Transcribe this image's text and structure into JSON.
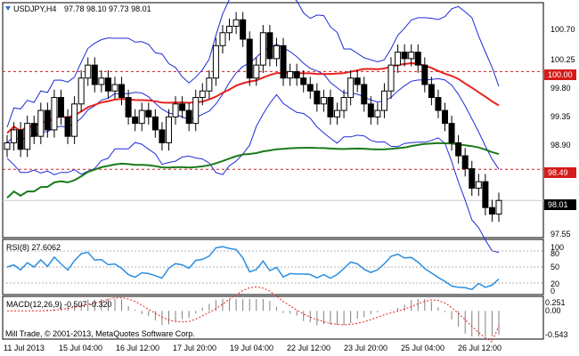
{
  "main_title": {
    "symbol": "USDJPY,H4",
    "ohlc": "97.78 98.10 97.73 98.01",
    "icon": "chart-triangle-icon"
  },
  "rsi_title": "RSI(8) 27.6062",
  "macd_title": "MACD(12,26,9) -0.507 -0.320",
  "copyright": "Mill Trade, © 2001-2013, MetaQuotes Software Corp.",
  "price_axis": [
    "100.70",
    "100.25",
    "99.80",
    "99.35",
    "98.90",
    "97.55"
  ],
  "price_tags": {
    "last": "98.01",
    "upper_level": "100.00",
    "lower_level": "98.49"
  },
  "rsi_axis": [
    "100",
    "80",
    "50",
    "20",
    "0"
  ],
  "macd_axis": [
    "0.251",
    "0.00",
    "-0.543"
  ],
  "time_axis": [
    "11 Jul 2013",
    "15 Jul 04:00",
    "16 Jul 12:00",
    "17 Jul 20:00",
    "19 Jul 04:00",
    "22 Jul 12:00",
    "23 Jul 20:00",
    "25 Jul 04:00",
    "26 Jul 12:00"
  ],
  "colors": {
    "bull": "#ffffff",
    "bear": "#000000",
    "ma_red": "#e8231e",
    "ma_green": "#1b7a1b",
    "bands": "#1f2bd6",
    "rsi": "#2b8ee0",
    "macd_hist": "#808080",
    "macd_signal": "#e8231e",
    "level_line": "#d41c1c",
    "tag_red": "#d41c1c"
  },
  "chart_data": {
    "type": "candlestick",
    "symbol": "USDJPY",
    "timeframe": "H4",
    "last_bar": {
      "open": 97.78,
      "high": 98.1,
      "low": 97.73,
      "close": 98.01
    },
    "ylim": [
      97.45,
      101.05
    ],
    "x": [
      "11 Jul 2013",
      "15 Jul 04:00",
      "16 Jul 12:00",
      "17 Jul 20:00",
      "19 Jul 04:00",
      "22 Jul 12:00",
      "23 Jul 20:00",
      "25 Jul 04:00",
      "26 Jul 12:00"
    ],
    "horizontal_levels": [
      100.0,
      98.49
    ],
    "close_series": [
      98.9,
      99.1,
      98.8,
      99.2,
      99.0,
      99.4,
      99.1,
      99.6,
      99.3,
      99.0,
      99.5,
      99.9,
      100.1,
      99.8,
      99.9,
      99.7,
      99.8,
      99.6,
      99.3,
      99.2,
      99.4,
      99.3,
      99.1,
      98.9,
      99.3,
      99.5,
      99.4,
      99.2,
      99.6,
      99.7,
      99.9,
      100.4,
      100.6,
      100.7,
      100.8,
      100.5,
      99.9,
      100.1,
      100.6,
      100.2,
      100.4,
      99.9,
      100.0,
      99.9,
      99.8,
      99.7,
      99.5,
      99.6,
      99.3,
      99.4,
      99.6,
      99.9,
      99.8,
      99.5,
      99.3,
      99.4,
      99.7,
      100.1,
      100.3,
      100.2,
      100.3,
      100.1,
      99.8,
      99.6,
      99.4,
      99.2,
      98.9,
      98.7,
      98.5,
      98.2,
      98.3,
      97.9,
      97.8,
      98.01
    ],
    "rsi": {
      "period": 8,
      "value": 27.6062,
      "levels": [
        80,
        50,
        20
      ],
      "ylim": [
        0,
        100
      ]
    },
    "macd": {
      "params": [
        12,
        26,
        9
      ],
      "main": -0.507,
      "signal": -0.32,
      "ylim": [
        -0.543,
        0.251
      ]
    }
  }
}
